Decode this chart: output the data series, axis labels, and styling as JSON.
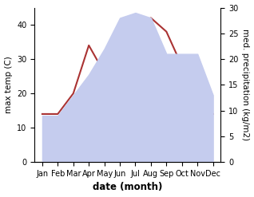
{
  "months": [
    "Jan",
    "Feb",
    "Mar",
    "Apr",
    "May",
    "Jun",
    "Jul",
    "Aug",
    "Sep",
    "Oct",
    "Nov",
    "Dec"
  ],
  "max_temp": [
    14.0,
    14.0,
    20.0,
    34.0,
    26.0,
    41.0,
    40.0,
    42.0,
    38.0,
    28.0,
    20.0,
    14.0
  ],
  "precipitation": [
    9.0,
    9.0,
    13.0,
    17.0,
    22.0,
    28.0,
    29.0,
    28.0,
    21.0,
    21.0,
    21.0,
    13.0
  ],
  "temp_color": "#aa3333",
  "precip_fill_color": "#c5ccee",
  "ylabel_left": "max temp (C)",
  "ylabel_right": "med. precipitation (kg/m2)",
  "xlabel": "date (month)",
  "ylim_left": [
    0,
    45
  ],
  "ylim_right": [
    0,
    30
  ],
  "yticks_left": [
    0,
    10,
    20,
    30,
    40
  ],
  "yticks_right": [
    0,
    5,
    10,
    15,
    20,
    25,
    30
  ],
  "bg_color": "#ffffff",
  "label_fontsize": 7.5,
  "tick_fontsize": 7.0,
  "xlabel_fontsize": 8.5
}
